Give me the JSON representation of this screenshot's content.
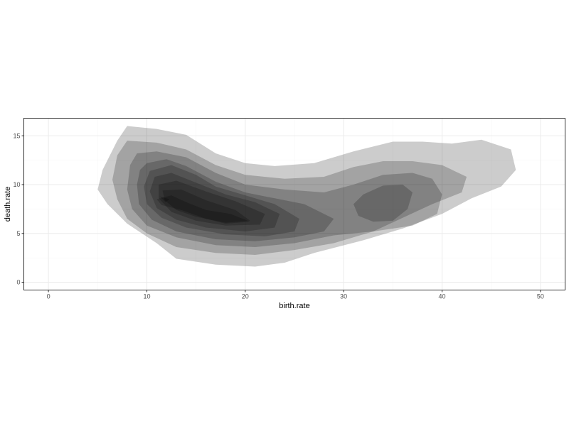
{
  "chart_data": {
    "type": "density2d_filled",
    "title": "",
    "xlabel": "birth.rate",
    "ylabel": "death.rate",
    "xlim": [
      -2.5,
      52.5
    ],
    "ylim": [
      -0.8,
      16.8
    ],
    "x_ticks": [
      0,
      10,
      20,
      30,
      40,
      50
    ],
    "y_ticks": [
      0,
      5,
      10,
      15
    ],
    "grid": true,
    "legend": "none",
    "colors": {
      "fill": "#000000",
      "band_opacity": 0.2,
      "grid_major": "#ebebeb",
      "grid_minor": "#f5f5f5",
      "panel_border": "#333333"
    },
    "density_modes": [
      {
        "x": 11.5,
        "y": 8.5
      },
      {
        "x": 19.5,
        "y": 6.0
      },
      {
        "x": 34.5,
        "y": 7.5
      }
    ],
    "bands": [
      {
        "level": 1,
        "points": [
          [
            8,
            16
          ],
          [
            11,
            15.7
          ],
          [
            14,
            15.1
          ],
          [
            17,
            13.2
          ],
          [
            20,
            12.2
          ],
          [
            23,
            11.9
          ],
          [
            27,
            12.2
          ],
          [
            31,
            13.4
          ],
          [
            35,
            14.4
          ],
          [
            38,
            14.4
          ],
          [
            41,
            14.2
          ],
          [
            44,
            14.6
          ],
          [
            47,
            13.6
          ],
          [
            47.5,
            11.5
          ],
          [
            46,
            9.8
          ],
          [
            43,
            8.6
          ],
          [
            40,
            7.0
          ],
          [
            36,
            5.5
          ],
          [
            32,
            4.3
          ],
          [
            27,
            3.0
          ],
          [
            24,
            2.0
          ],
          [
            21,
            1.6
          ],
          [
            17,
            1.8
          ],
          [
            13,
            2.4
          ],
          [
            11,
            4.0
          ],
          [
            8,
            6.0
          ],
          [
            6,
            8.0
          ],
          [
            5,
            9.5
          ],
          [
            5.5,
            11.5
          ],
          [
            7,
            14.5
          ]
        ]
      },
      {
        "level": 2,
        "points": [
          [
            8,
            14.5
          ],
          [
            11,
            14.3
          ],
          [
            14,
            13.6
          ],
          [
            17,
            12.0
          ],
          [
            20,
            11.0
          ],
          [
            24,
            10.6
          ],
          [
            28,
            10.8
          ],
          [
            31,
            11.8
          ],
          [
            34,
            12.4
          ],
          [
            37,
            12.4
          ],
          [
            40,
            12.0
          ],
          [
            42.5,
            10.8
          ],
          [
            42,
            9.2
          ],
          [
            39,
            8.0
          ],
          [
            36,
            6.6
          ],
          [
            33,
            5.2
          ],
          [
            29,
            4.0
          ],
          [
            25,
            3.3
          ],
          [
            21,
            2.8
          ],
          [
            17,
            3.0
          ],
          [
            13,
            3.6
          ],
          [
            10,
            5.0
          ],
          [
            8,
            6.5
          ],
          [
            7,
            8.5
          ],
          [
            6.5,
            10.5
          ],
          [
            7,
            13
          ]
        ]
      },
      {
        "level": 3,
        "points": [
          [
            9,
            13.2
          ],
          [
            11,
            13.4
          ],
          [
            14,
            12.8
          ],
          [
            17,
            11.2
          ],
          [
            20,
            10.0
          ],
          [
            24,
            9.5
          ],
          [
            28,
            9.2
          ],
          [
            31,
            10.0
          ],
          [
            34,
            11.0
          ],
          [
            37,
            11.2
          ],
          [
            39,
            10.6
          ],
          [
            40,
            9.0
          ],
          [
            39.5,
            7.0
          ],
          [
            37,
            5.8
          ],
          [
            33,
            5.2
          ],
          [
            29,
            4.8
          ],
          [
            25,
            4.0
          ],
          [
            21,
            3.6
          ],
          [
            17,
            3.8
          ],
          [
            13,
            4.6
          ],
          [
            10,
            5.8
          ],
          [
            8.5,
            7.5
          ],
          [
            8,
            9.5
          ],
          [
            8.3,
            12
          ]
        ]
      },
      {
        "level": 4,
        "points": [
          [
            10,
            12.2
          ],
          [
            12,
            12.6
          ],
          [
            14,
            11.9
          ],
          [
            17,
            10.3
          ],
          [
            20,
            9.2
          ],
          [
            23,
            8.6
          ],
          [
            26,
            8.0
          ],
          [
            29,
            6.5
          ],
          [
            28,
            5.2
          ],
          [
            25,
            4.6
          ],
          [
            21,
            4.2
          ],
          [
            17,
            4.4
          ],
          [
            13,
            5.2
          ],
          [
            10.5,
            6.4
          ],
          [
            9.2,
            8.0
          ],
          [
            9,
            10
          ],
          [
            9.3,
            11.5
          ]
        ]
      },
      {
        "level": 5,
        "points": [
          [
            10.3,
            11.4
          ],
          [
            12.5,
            12.0
          ],
          [
            15,
            11.0
          ],
          [
            17,
            9.8
          ],
          [
            20,
            8.9
          ],
          [
            23,
            8.0
          ],
          [
            25.5,
            6.5
          ],
          [
            25,
            5.2
          ],
          [
            22,
            4.7
          ],
          [
            18,
            4.9
          ],
          [
            14,
            5.6
          ],
          [
            11.5,
            6.6
          ],
          [
            10,
            8.0
          ],
          [
            9.7,
            9.8
          ]
        ]
      },
      {
        "level": 6,
        "points": [
          [
            10.8,
            10.8
          ],
          [
            12.5,
            11.2
          ],
          [
            15,
            10.2
          ],
          [
            18,
            9.0
          ],
          [
            21,
            8.2
          ],
          [
            23.5,
            7.0
          ],
          [
            23,
            5.6
          ],
          [
            20,
            5.2
          ],
          [
            16,
            5.6
          ],
          [
            13,
            6.4
          ],
          [
            11,
            7.6
          ],
          [
            10.3,
            9.3
          ]
        ]
      },
      {
        "level": 7,
        "points": [
          [
            11.2,
            10.0
          ],
          [
            13,
            10.4
          ],
          [
            16,
            9.3
          ],
          [
            19,
            8.3
          ],
          [
            22,
            7.0
          ],
          [
            21.5,
            5.9
          ],
          [
            18,
            5.8
          ],
          [
            15,
            6.3
          ],
          [
            12.5,
            7.2
          ],
          [
            11.2,
            8.6
          ]
        ]
      },
      {
        "level": 8,
        "points": [
          [
            11.6,
            9.4
          ],
          [
            13.5,
            9.5
          ],
          [
            16,
            8.4
          ],
          [
            19,
            7.4
          ],
          [
            20.5,
            6.3
          ],
          [
            18,
            6.1
          ],
          [
            15,
            6.7
          ],
          [
            13,
            7.4
          ],
          [
            11.8,
            8.4
          ]
        ]
      },
      {
        "level": 9,
        "points": [
          [
            11,
            8.5
          ],
          [
            12.5,
            8.9
          ],
          [
            14,
            8.2
          ],
          [
            16,
            7.4
          ],
          [
            18.5,
            7.0
          ],
          [
            20.5,
            6.2
          ],
          [
            18,
            6.0
          ],
          [
            16,
            6.5
          ],
          [
            13.5,
            7.4
          ],
          [
            11.5,
            7.9
          ]
        ]
      },
      {
        "level": 10,
        "points": [
          [
            11.3,
            8.8
          ],
          [
            12.3,
            8.5
          ],
          [
            11.9,
            8.2
          ]
        ]
      },
      {
        "level": 3,
        "points": [
          [
            31,
            8.0
          ],
          [
            32,
            9.0
          ],
          [
            34,
            9.9
          ],
          [
            36,
            10.0
          ],
          [
            37,
            9.2
          ],
          [
            36.5,
            7.5
          ],
          [
            35,
            6.3
          ],
          [
            33,
            6.2
          ],
          [
            31.5,
            6.8
          ]
        ]
      }
    ]
  }
}
